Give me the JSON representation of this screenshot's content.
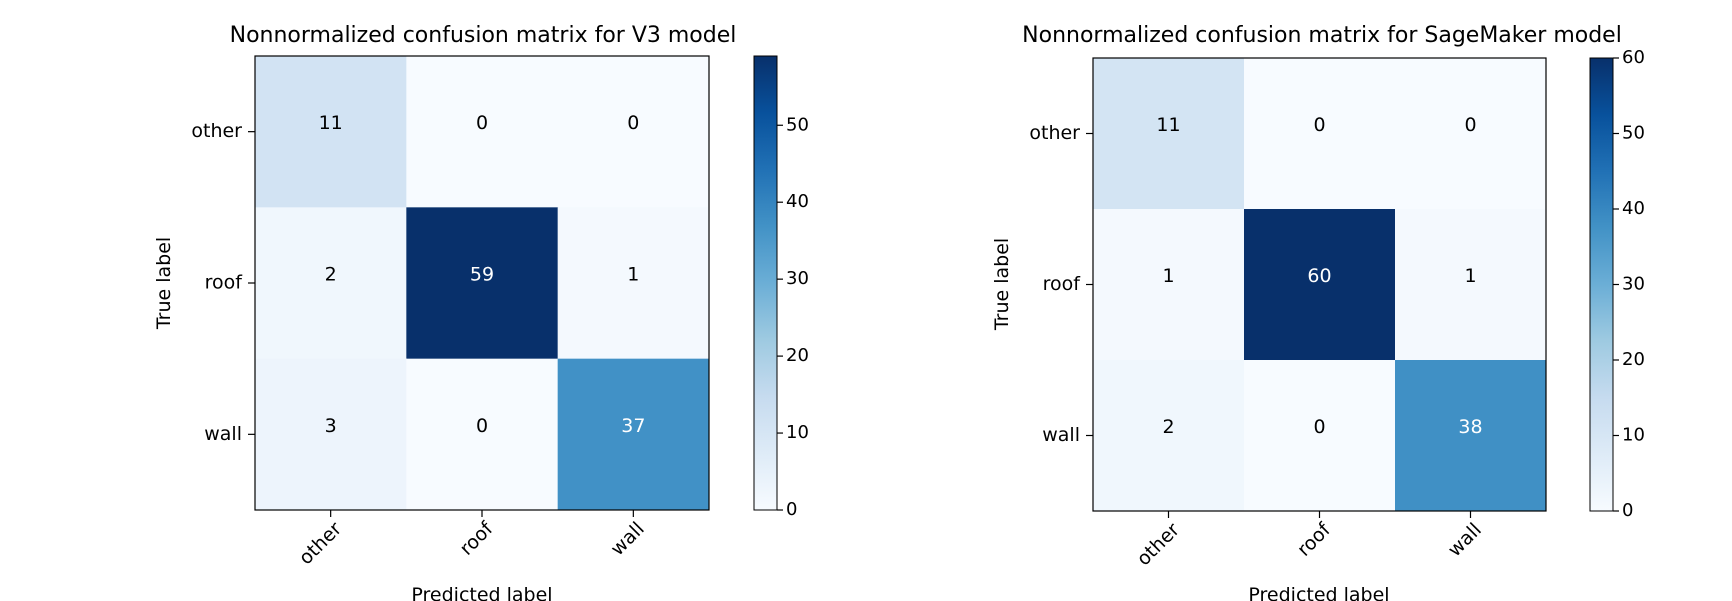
{
  "chart_data": [
    {
      "type": "heatmap",
      "title": "Nonnormalized confusion matrix for V3 model",
      "xlabel": "Predicted label",
      "ylabel": "True label",
      "x_categories": [
        "other",
        "roof",
        "wall"
      ],
      "y_categories": [
        "other",
        "roof",
        "wall"
      ],
      "values": [
        [
          11,
          0,
          0
        ],
        [
          2,
          59,
          1
        ],
        [
          3,
          0,
          37
        ]
      ],
      "colormap": "Blues",
      "vmin": 0,
      "vmax": 59,
      "colorbar_ticks": [
        "0",
        "10",
        "20",
        "30",
        "40",
        "50"
      ]
    },
    {
      "type": "heatmap",
      "title": "Nonnormalized confusion matrix for SageMaker model",
      "xlabel": "Predicted label",
      "ylabel": "True label",
      "x_categories": [
        "other",
        "roof",
        "wall"
      ],
      "y_categories": [
        "other",
        "roof",
        "wall"
      ],
      "values": [
        [
          11,
          0,
          0
        ],
        [
          1,
          60,
          1
        ],
        [
          2,
          0,
          38
        ]
      ],
      "colormap": "Blues",
      "vmin": 0,
      "vmax": 60,
      "colorbar_ticks": [
        "0",
        "10",
        "20",
        "30",
        "40",
        "50",
        "60"
      ]
    }
  ]
}
